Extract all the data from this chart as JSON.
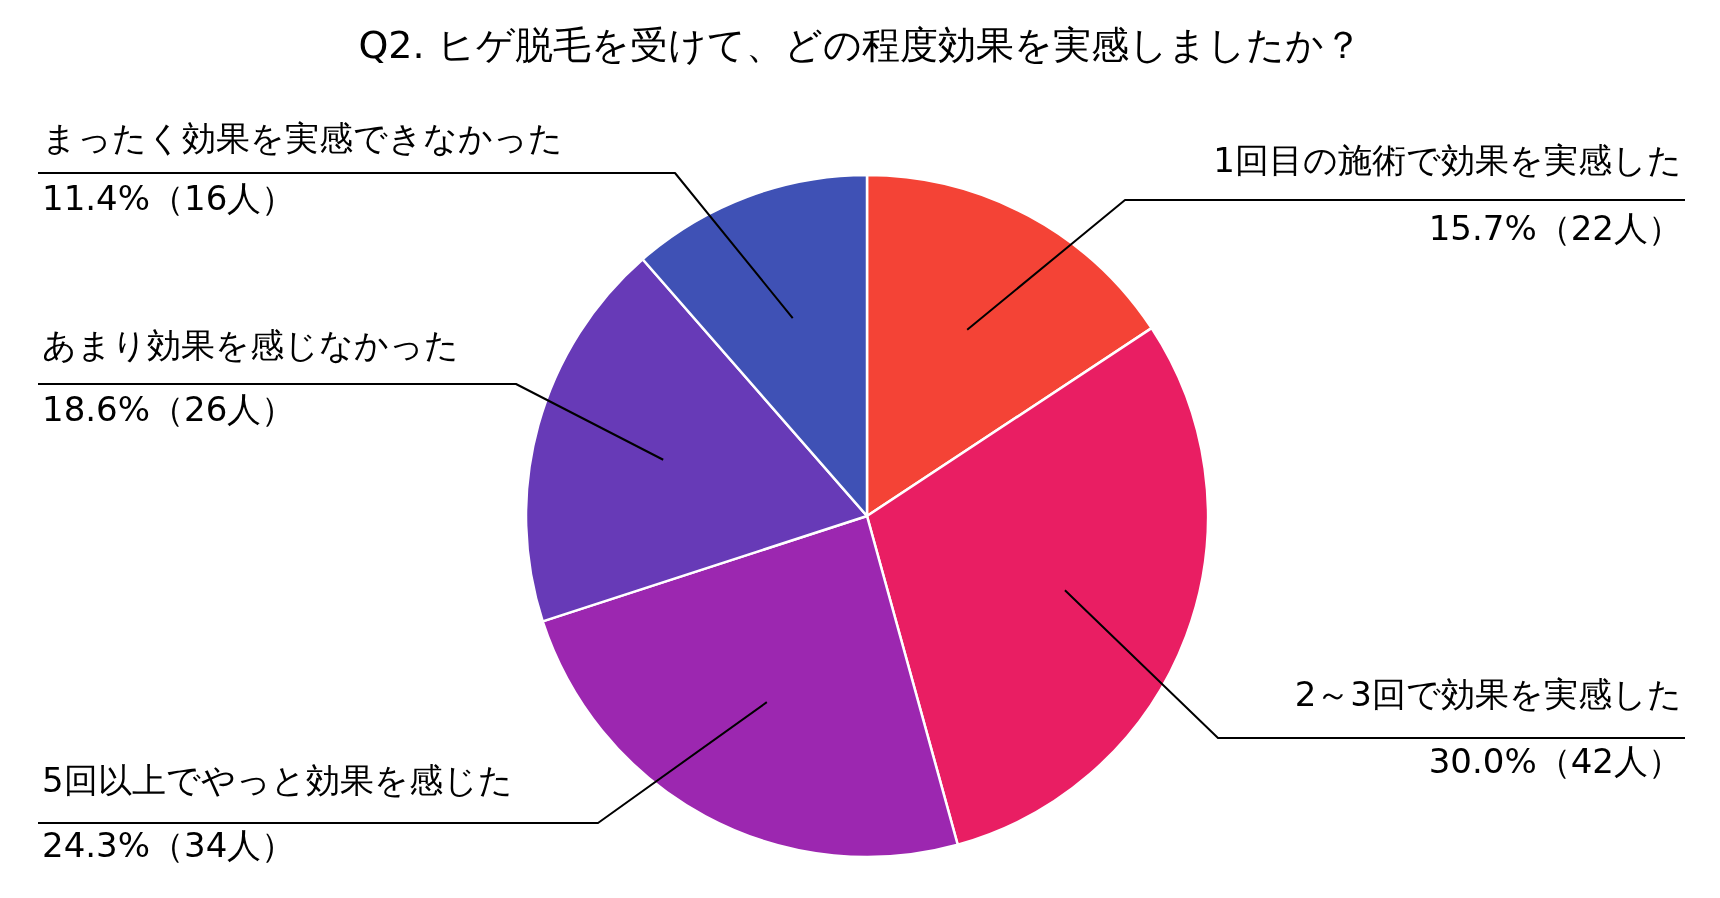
{
  "chart_data": {
    "type": "pie",
    "title": "Q2. ヒゲ脱毛を受けて、どの程度効果を実感しましたか？",
    "categories": [
      "1回目の施術で効果を実感した",
      "2～3回で効果を実感した",
      "5回以上でやっと効果を感じた",
      "あまり効果を感じなかった",
      "まったく効果を実感できなかった"
    ],
    "values": [
      22,
      42,
      34,
      26,
      16
    ],
    "value_labels": [
      "15.7%（22人）",
      "30.0%（42人）",
      "24.3%（34人）",
      "18.6%（26人）",
      "11.4%（16人）"
    ],
    "colors": [
      "#f44336",
      "#e91e63",
      "#9c27b0",
      "#673ab7",
      "#3f51b5"
    ]
  }
}
